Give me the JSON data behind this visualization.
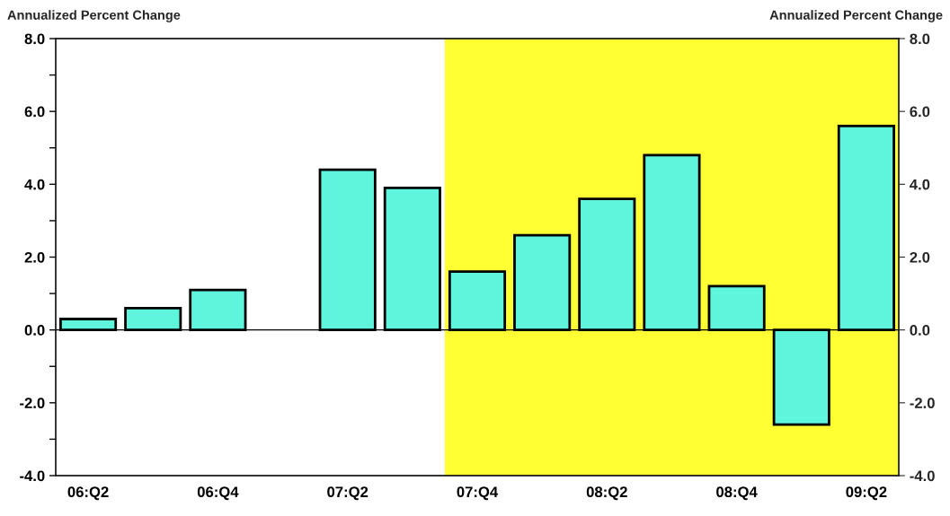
{
  "chart_data": {
    "type": "bar",
    "ylabel": "Annualized Percent Change",
    "y2label": "Annualized Percent Change",
    "categories": [
      "06:Q2",
      null,
      "06:Q4",
      null,
      "07:Q2",
      null,
      "07:Q4",
      null,
      "08:Q2",
      null,
      "08:Q4",
      null,
      "09:Q2"
    ],
    "values": [
      0.3,
      0.6,
      1.1,
      null,
      4.4,
      3.9,
      1.6,
      2.6,
      3.6,
      4.8,
      1.2,
      -2.6,
      5.6
    ],
    "color": "#5ff5dc",
    "ylim": [
      -4,
      8
    ],
    "yticks": [
      {
        "value": -4,
        "label": "-4.0"
      },
      {
        "value": -3,
        "label": null
      },
      {
        "value": -2,
        "label": "-2.0"
      },
      {
        "value": -1,
        "label": null
      },
      {
        "value": 0,
        "label": "0.0"
      },
      {
        "value": 1,
        "label": null
      },
      {
        "value": 2,
        "label": "2.0"
      },
      {
        "value": 3,
        "label": null
      },
      {
        "value": 4,
        "label": "4.0"
      },
      {
        "value": 5,
        "label": null
      },
      {
        "value": 6,
        "label": "6.0"
      },
      {
        "value": 7,
        "label": null
      },
      {
        "value": 8,
        "label": "8.0"
      }
    ],
    "y2lim": [
      -4,
      8
    ],
    "y2ticks": [
      {
        "value": -4,
        "label": "-4.0"
      },
      {
        "value": -2,
        "label": "-2.0"
      },
      {
        "value": 0,
        "label": "0.0"
      },
      {
        "value": 2,
        "label": "2.0"
      },
      {
        "value": 4,
        "label": "4.0"
      },
      {
        "value": 6,
        "label": "6.0"
      },
      {
        "value": 8,
        "label": "8.0"
      }
    ],
    "bands": [
      {
        "axis": "x",
        "from": "07:Q4",
        "to": "09:Q2",
        "color": "#ffff33"
      }
    ],
    "legend": false
  }
}
